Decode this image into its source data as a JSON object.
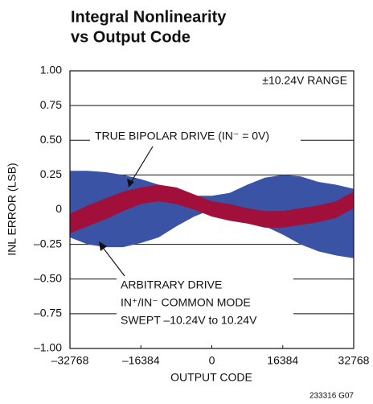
{
  "chart_data": {
    "type": "band",
    "title": [
      "Integral Nonlinearity",
      "vs Output Code"
    ],
    "xlabel": "OUTPUT CODE",
    "ylabel": "INL ERROR (LSB)",
    "footnote": "233316 G07",
    "annotations": [
      "±10.24V RANGE",
      "TRUE BIPOLAR DRIVE (IN⁻ = 0V)",
      "ARBITRARY DRIVE",
      "IN⁺/IN⁻ COMMON MODE",
      "SWEPT –10.24V to 10.24V"
    ],
    "x": [
      -32768,
      -28672,
      -24576,
      -20480,
      -16384,
      -12288,
      -8192,
      -4096,
      0,
      4096,
      8192,
      12288,
      16384,
      20480,
      24576,
      28672,
      32768
    ],
    "series": [
      {
        "color": "#3a53a4",
        "upper": [
          0.28,
          0.28,
          0.27,
          0.25,
          0.22,
          0.18,
          0.14,
          0.1,
          0.1,
          0.12,
          0.18,
          0.23,
          0.25,
          0.24,
          0.2,
          0.18,
          0.15
        ],
        "lower": [
          -0.2,
          -0.25,
          -0.27,
          -0.27,
          -0.24,
          -0.2,
          -0.12,
          -0.05,
          0.0,
          -0.01,
          -0.05,
          -0.12,
          -0.18,
          -0.25,
          -0.3,
          -0.33,
          -0.35
        ]
      },
      {
        "color": "#a0103a",
        "upper": [
          -0.03,
          0.03,
          0.08,
          0.13,
          0.16,
          0.18,
          0.16,
          0.11,
          0.06,
          0.04,
          0.01,
          -0.01,
          -0.01,
          0.01,
          0.03,
          0.06,
          0.13
        ],
        "lower": [
          -0.17,
          -0.12,
          -0.07,
          -0.01,
          0.04,
          0.06,
          0.04,
          0.0,
          -0.05,
          -0.08,
          -0.1,
          -0.13,
          -0.13,
          -0.11,
          -0.09,
          -0.06,
          0.01
        ]
      }
    ],
    "xlim": [
      -32768,
      32768
    ],
    "ylim": [
      -1,
      1
    ],
    "xticks": [
      {
        "value": -32768,
        "label": "–32768"
      },
      {
        "value": -16384,
        "label": "–16384"
      },
      0,
      16384,
      32768
    ],
    "yticks": [
      {
        "value": -1,
        "label": "–1.00"
      },
      {
        "value": -0.75,
        "label": "–0.75"
      },
      {
        "value": -0.5,
        "label": "–0.50"
      },
      {
        "value": -0.25,
        "label": "–0.25"
      },
      0,
      {
        "value": 0.25,
        "label": "0.25"
      },
      {
        "value": 0.5,
        "label": "0.50"
      },
      {
        "value": 0.75,
        "label": "0.75"
      },
      {
        "value": 1,
        "label": "1.00"
      }
    ],
    "grid": true
  }
}
